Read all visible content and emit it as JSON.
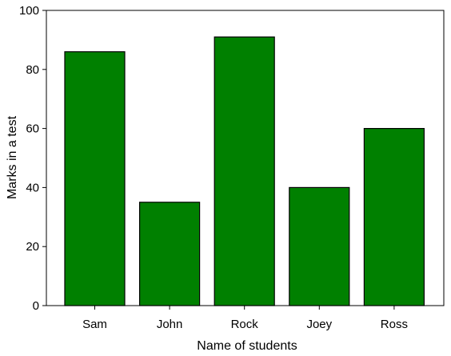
{
  "chart_data": {
    "type": "bar",
    "categories": [
      "Sam",
      "John",
      "Rock",
      "Joey",
      "Ross"
    ],
    "values": [
      86,
      35,
      91,
      40,
      60
    ],
    "xlabel": "Name of students",
    "ylabel": "Marks in a test",
    "ylim": [
      0,
      100
    ],
    "yticks": [
      0,
      20,
      40,
      60,
      80,
      100
    ],
    "grid": false,
    "bar_color": "#008000",
    "edge_color": "#000000"
  }
}
